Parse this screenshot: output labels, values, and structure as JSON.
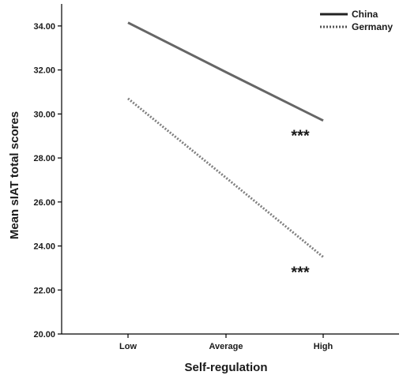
{
  "chart_data": {
    "type": "line",
    "xlabel": "Self-regulation",
    "ylabel": "Mean sIAT total scores",
    "categories": [
      "Low",
      "Average",
      "High"
    ],
    "ylim": [
      20,
      35
    ],
    "yticks": [
      "20.00",
      "22.00",
      "24.00",
      "26.00",
      "28.00",
      "30.00",
      "32.00",
      "34.00"
    ],
    "legend_position": "top-right",
    "grid": false,
    "series": [
      {
        "name": "China",
        "values": [
          34.15,
          31.9,
          29.7
        ],
        "color": "#666666",
        "style": "solid",
        "annotation": "***"
      },
      {
        "name": "Germany",
        "values": [
          30.7,
          27.1,
          23.5
        ],
        "color": "#808080",
        "style": "dotted",
        "annotation": "***"
      }
    ]
  }
}
